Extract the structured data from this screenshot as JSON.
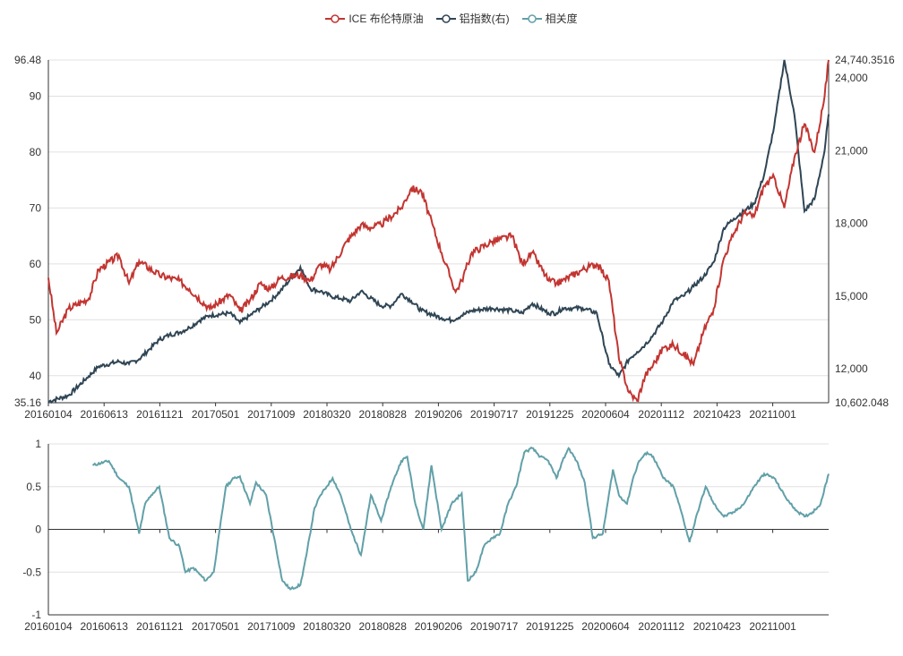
{
  "chart_data": [
    {
      "type": "line",
      "legend": [
        "ICE 布伦特原油",
        "铝指数(右)",
        "相关度"
      ],
      "legend_placement": "top-center",
      "colors": {
        "brent": "#c23531",
        "al": "#2f4554",
        "corr": "#61a0a8"
      },
      "x_tick_labels": [
        "20160104",
        "20160613",
        "20161121",
        "20170501",
        "20171009",
        "20180320",
        "20180828",
        "20190206",
        "20190717",
        "20191225",
        "20200604",
        "20201112",
        "20210423",
        "20211001"
      ],
      "y_left": {
        "min": 35.16,
        "max": 96.48,
        "ticks": [
          "35.16",
          "40",
          "50",
          "60",
          "70",
          "80",
          "90",
          "96.48"
        ],
        "tick_values": [
          35.16,
          40,
          50,
          60,
          70,
          80,
          90,
          96.48
        ]
      },
      "y_right": {
        "min": 10602.048,
        "max": 24740.3516,
        "ticks": [
          "10,602.048",
          "12,000",
          "15,000",
          "18,000",
          "21,000",
          "24,000",
          "24,740.3516"
        ],
        "tick_values": [
          10602.048,
          12000,
          15000,
          18000,
          21000,
          24000,
          24740.3516
        ]
      },
      "grid": true,
      "series": [
        {
          "name": "ICE 布伦特原油",
          "axis": "left",
          "x": [
            0,
            4,
            10,
            20,
            25,
            35,
            40,
            45,
            55,
            65,
            70,
            80,
            90,
            95,
            100,
            105,
            110,
            115,
            125,
            130,
            135,
            140,
            148,
            155,
            160,
            165,
            175,
            180,
            185,
            195,
            200,
            202,
            205,
            210,
            220,
            230,
            235,
            240,
            248,
            252,
            255,
            260,
            265,
            272,
            278,
            283,
            288,
            292,
            296,
            300,
            305,
            310,
            315,
            320,
            325,
            330,
            335,
            340,
            345,
            350,
            355,
            360,
            365,
            370,
            375,
            380,
            385,
            387
          ],
          "values": [
            57.5,
            47.6,
            52,
            53.8,
            59,
            61.5,
            56.5,
            60.5,
            58,
            57,
            55.5,
            52,
            54.5,
            51.5,
            53.5,
            56.5,
            55.5,
            57.5,
            58,
            57,
            60,
            59,
            64,
            67,
            66.5,
            67,
            70,
            73.5,
            73,
            62,
            57,
            55,
            57,
            62,
            64,
            65,
            60,
            62,
            57,
            56.5,
            57,
            58,
            59,
            60,
            57,
            43,
            37,
            35.5,
            40,
            42,
            45,
            45.5,
            44,
            42,
            48,
            52,
            61,
            65.5,
            69,
            68.5,
            74,
            75.5,
            70,
            79,
            85,
            80,
            90,
            96.48
          ]
        },
        {
          "name": "铝指数(右)",
          "axis": "right",
          "x": [
            0,
            10,
            20,
            25,
            35,
            40,
            45,
            50,
            55,
            60,
            65,
            70,
            75,
            80,
            90,
            95,
            100,
            105,
            110,
            115,
            125,
            130,
            135,
            140,
            145,
            150,
            155,
            165,
            170,
            175,
            180,
            185,
            195,
            200,
            205,
            210,
            220,
            230,
            235,
            240,
            248,
            252,
            255,
            260,
            265,
            272,
            278,
            283,
            288,
            292,
            296,
            300,
            305,
            310,
            315,
            320,
            325,
            330,
            335,
            340,
            345,
            350,
            355,
            360,
            365,
            370,
            375,
            380,
            385,
            387
          ],
          "values": [
            10650,
            10900,
            11700,
            12100,
            12300,
            12200,
            12400,
            12800,
            13200,
            13400,
            13500,
            13700,
            14000,
            14200,
            14300,
            13900,
            14200,
            14500,
            14800,
            15200,
            16200,
            15300,
            15200,
            15000,
            14900,
            14800,
            15200,
            14600,
            14600,
            15100,
            14800,
            14400,
            14100,
            14000,
            14200,
            14400,
            14500,
            14400,
            14300,
            14700,
            14300,
            14300,
            14500,
            14500,
            14500,
            14300,
            12200,
            11700,
            12400,
            12700,
            13000,
            13400,
            14000,
            14800,
            15000,
            15400,
            15800,
            16400,
            17800,
            18200,
            18500,
            18800,
            20000,
            22000,
            24740,
            22500,
            18500,
            19000,
            21000,
            22500
          ]
        },
        {
          "name": "相关度",
          "axis": "corr",
          "x": [
            22,
            30,
            35,
            40,
            45,
            48,
            51,
            55,
            60,
            65,
            68,
            72,
            78,
            82,
            85,
            88,
            92,
            95,
            100,
            103,
            108,
            112,
            116,
            120,
            125,
            128,
            132,
            135,
            138,
            141,
            145,
            150,
            155,
            160,
            165,
            170,
            175,
            178,
            182,
            186,
            190,
            195,
            200,
            205,
            208,
            212,
            216,
            220,
            224,
            228,
            232,
            236,
            240,
            244,
            248,
            252,
            255,
            258,
            262,
            266,
            270,
            275,
            280,
            283,
            287,
            290,
            293,
            297,
            300,
            305,
            310,
            314,
            318,
            322,
            326,
            330,
            335,
            340,
            345,
            350,
            355,
            360,
            365,
            368,
            372,
            375,
            379,
            383,
            387
          ],
          "values": [
            0.75,
            0.8,
            0.6,
            0.5,
            -0.05,
            0.3,
            0.4,
            0.5,
            -0.1,
            -0.2,
            -0.5,
            -0.45,
            -0.6,
            -0.5,
            0.0,
            0.5,
            0.6,
            0.62,
            0.3,
            0.55,
            0.4,
            -0.1,
            -0.6,
            -0.7,
            -0.65,
            -0.3,
            0.25,
            0.4,
            0.5,
            0.6,
            0.4,
            0.0,
            -0.3,
            0.4,
            0.1,
            0.5,
            0.8,
            0.85,
            0.3,
            0.0,
            0.75,
            0.0,
            0.3,
            0.42,
            -0.6,
            -0.5,
            -0.2,
            -0.1,
            -0.05,
            0.3,
            0.5,
            0.9,
            0.95,
            0.85,
            0.8,
            0.6,
            0.8,
            0.95,
            0.8,
            0.55,
            -0.1,
            -0.05,
            0.7,
            0.4,
            0.3,
            0.6,
            0.8,
            0.9,
            0.85,
            0.6,
            0.5,
            0.2,
            -0.15,
            0.2,
            0.5,
            0.3,
            0.15,
            0.2,
            0.3,
            0.5,
            0.65,
            0.6,
            0.4,
            0.3,
            0.2,
            0.15,
            0.2,
            0.3,
            0.65
          ]
        }
      ]
    },
    {
      "type": "line",
      "y_axis": {
        "min": -1,
        "max": 1,
        "ticks": [
          "-1",
          "-0.5",
          "0",
          "0.5",
          "1"
        ],
        "tick_values": [
          -1,
          -0.5,
          0,
          0.5,
          1
        ]
      },
      "x_tick_labels": [
        "20160104",
        "20160613",
        "20161121",
        "20170501",
        "20171009",
        "20180320",
        "20180828",
        "20190206",
        "20190717",
        "20191225",
        "20200604",
        "20201112",
        "20210423",
        "20211001"
      ],
      "grid": true
    }
  ]
}
